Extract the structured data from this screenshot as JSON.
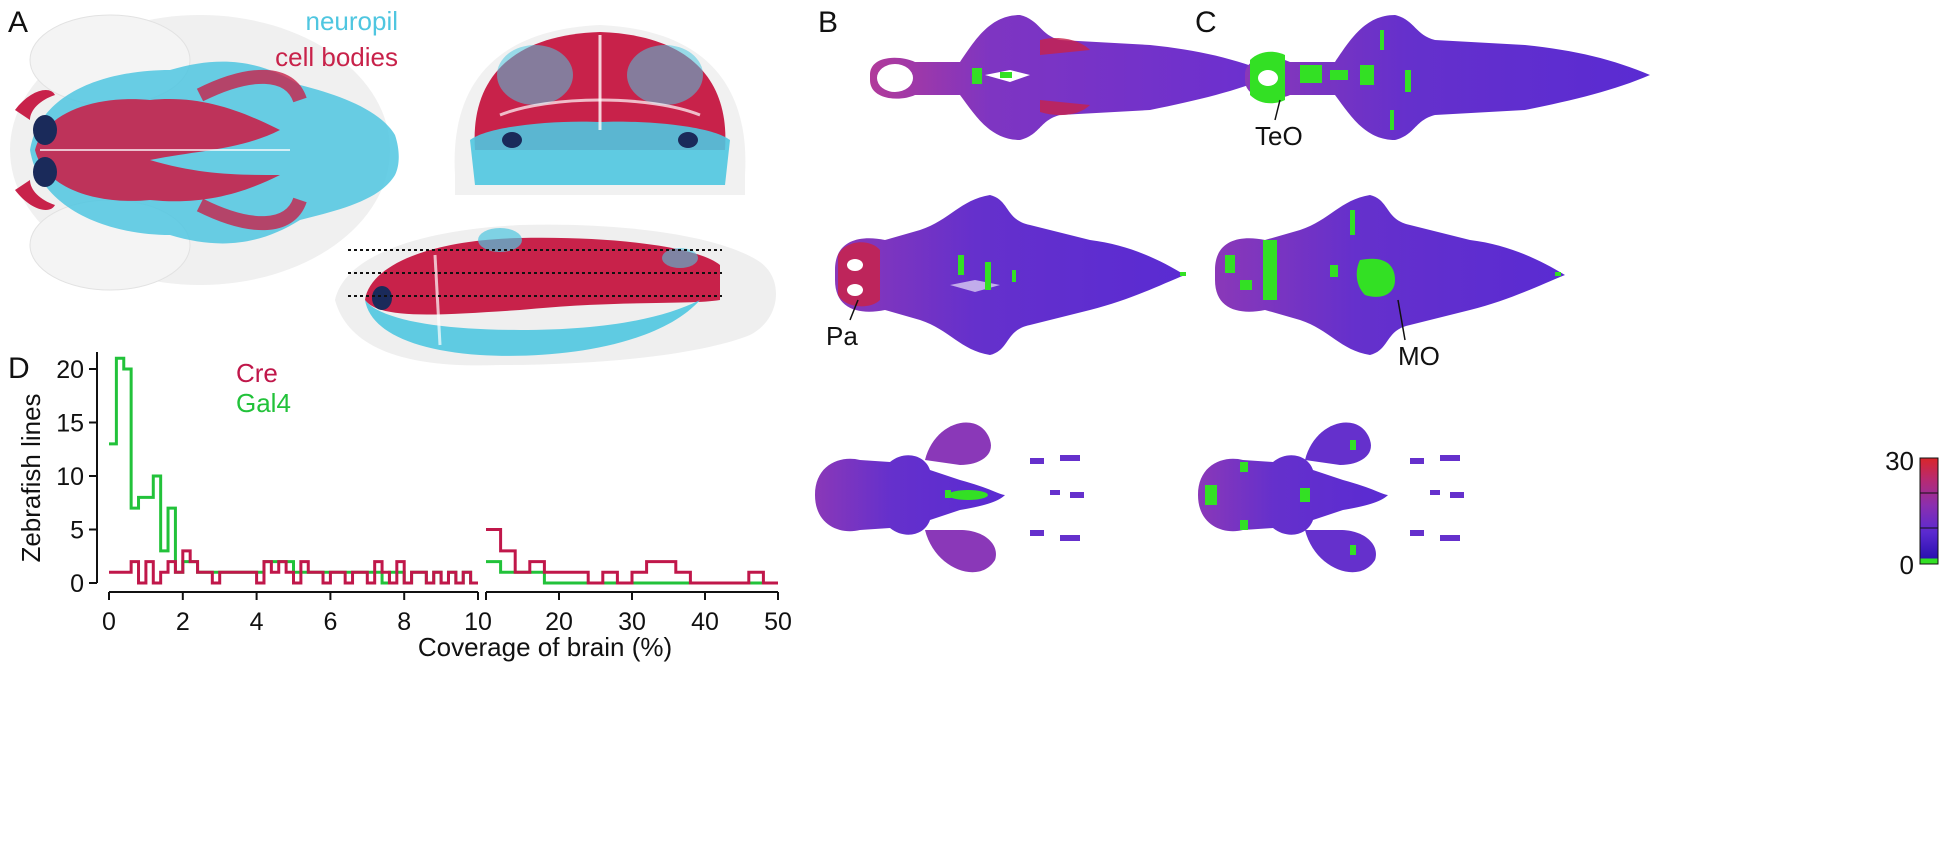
{
  "figure": {
    "panels": {
      "a": "A",
      "b": "B",
      "c": "C",
      "d": "D"
    },
    "panel_a": {
      "legend_neuropil": "neuropil",
      "legend_cell_bodies": "cell bodies",
      "neuropil_color": "#4fc6e0",
      "cell_body_color": "#c8224a"
    },
    "panel_b": {
      "annotation": "Pa"
    },
    "panel_c": {
      "annotation_teo": "TeO",
      "annotation_mo": "MO"
    },
    "colorbar": {
      "max_label": "30",
      "min_label": "0",
      "colors": [
        "#d9262a",
        "#b82a70",
        "#8a2fb0",
        "#5b2ad0",
        "#2a10b0",
        "#33e024"
      ]
    }
  },
  "chart_data": {
    "type": "step",
    "title": "",
    "xlabel": "Coverage of brain (%)",
    "ylabel": "Zebrafish lines",
    "ylim": [
      0,
      22
    ],
    "yticks": [
      "0",
      "5",
      "10",
      "15",
      "20"
    ],
    "x_axis_broken": true,
    "segment1": {
      "range": [
        0,
        10
      ],
      "ticks": [
        "0",
        "2",
        "4",
        "6",
        "8",
        "10"
      ]
    },
    "segment2": {
      "range": [
        10,
        50
      ],
      "ticks": [
        "10",
        "20",
        "30",
        "40",
        "50"
      ]
    },
    "series": [
      {
        "name": "Cre",
        "color": "#c0174a",
        "segment1_bins": [
          0,
          0.2,
          0.4,
          0.6,
          0.8,
          1.0,
          1.2,
          1.4,
          1.6,
          1.8,
          2.0,
          2.2,
          2.4,
          2.6,
          2.8,
          3.0,
          3.2,
          3.4,
          3.6,
          3.8,
          4.0,
          4.2,
          4.4,
          4.6,
          4.8,
          5.0,
          5.2,
          5.4,
          5.6,
          5.8,
          6.0,
          6.2,
          6.4,
          6.6,
          6.8,
          7.0,
          7.2,
          7.4,
          7.6,
          7.8,
          8.0,
          8.2,
          8.4,
          8.6,
          8.8,
          9.0,
          9.2,
          9.4,
          9.6,
          9.8,
          10.0
        ],
        "segment1_counts": [
          1,
          1,
          1,
          2,
          0,
          2,
          0,
          1,
          2,
          1,
          3,
          2,
          1,
          1,
          0,
          1,
          1,
          1,
          1,
          1,
          0,
          2,
          1,
          2,
          1,
          0,
          2,
          1,
          1,
          0,
          1,
          1,
          0,
          1,
          1,
          0,
          2,
          1,
          0,
          2,
          0,
          1,
          1,
          0,
          1,
          0,
          1,
          0,
          1,
          0
        ],
        "segment2_bins": [
          10,
          12,
          14,
          16,
          18,
          20,
          22,
          24,
          26,
          28,
          30,
          32,
          34,
          36,
          38,
          40,
          42,
          44,
          46,
          48,
          50
        ],
        "segment2_counts": [
          5,
          3,
          1,
          2,
          1,
          1,
          1,
          0,
          1,
          0,
          1,
          2,
          2,
          1,
          0,
          0,
          0,
          0,
          1,
          0
        ]
      },
      {
        "name": "Gal4",
        "color": "#22c23a",
        "segment1_bins": [
          0,
          0.2,
          0.4,
          0.6,
          0.8,
          1.0,
          1.2,
          1.4,
          1.6,
          1.8,
          2.0,
          2.2,
          2.4,
          2.6,
          2.8,
          3.0,
          3.2,
          3.4,
          3.6,
          3.8,
          4.0,
          4.2,
          4.4,
          4.6,
          4.8,
          5.0,
          5.2,
          5.4,
          5.6,
          5.8,
          6.0,
          6.2,
          6.4,
          6.6,
          6.8,
          7.0,
          7.2,
          7.4,
          7.6,
          7.8,
          8.0,
          8.2,
          8.4,
          8.6,
          8.8,
          9.0,
          9.2,
          9.4,
          9.6,
          9.8,
          10.0
        ],
        "segment1_counts": [
          13,
          21,
          20,
          7,
          8,
          8,
          10,
          3,
          7,
          1,
          2,
          2,
          1,
          1,
          1,
          1,
          1,
          1,
          1,
          1,
          1,
          2,
          2,
          2,
          2,
          1,
          1,
          1,
          1,
          1,
          1,
          1,
          1,
          1,
          1,
          1,
          1,
          0,
          1,
          1,
          0,
          1,
          1,
          0,
          1,
          0,
          1,
          0,
          1,
          0
        ],
        "segment2_bins": [
          10,
          12,
          14,
          16,
          18,
          20,
          22,
          24,
          26,
          28,
          30,
          32,
          34,
          36,
          38,
          40,
          42,
          44,
          46,
          48,
          50
        ],
        "segment2_counts": [
          2,
          1,
          1,
          1,
          0,
          0,
          0,
          0,
          0,
          0,
          0,
          0,
          0,
          0,
          0,
          0,
          0,
          0,
          0,
          0
        ]
      }
    ]
  }
}
